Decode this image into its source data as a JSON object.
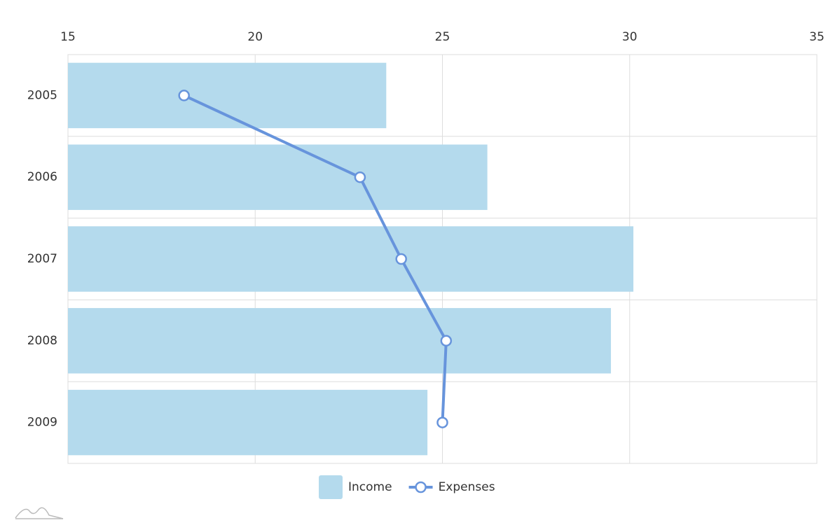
{
  "chart_data": {
    "type": "bar",
    "orientation": "horizontal",
    "categories": [
      "2005",
      "2006",
      "2007",
      "2008",
      "2009"
    ],
    "series": [
      {
        "name": "Income",
        "type": "bar",
        "color": "#b4daed",
        "values": [
          23.5,
          26.2,
          30.1,
          29.5,
          24.6
        ]
      },
      {
        "name": "Expenses",
        "type": "line",
        "color": "#6794dc",
        "values": [
          18.1,
          22.8,
          23.9,
          25.1,
          25.0
        ]
      }
    ],
    "xlim": [
      15,
      35
    ],
    "xticks": [
      15,
      20,
      25,
      30,
      35
    ],
    "grid": true,
    "legend": "bottom"
  }
}
